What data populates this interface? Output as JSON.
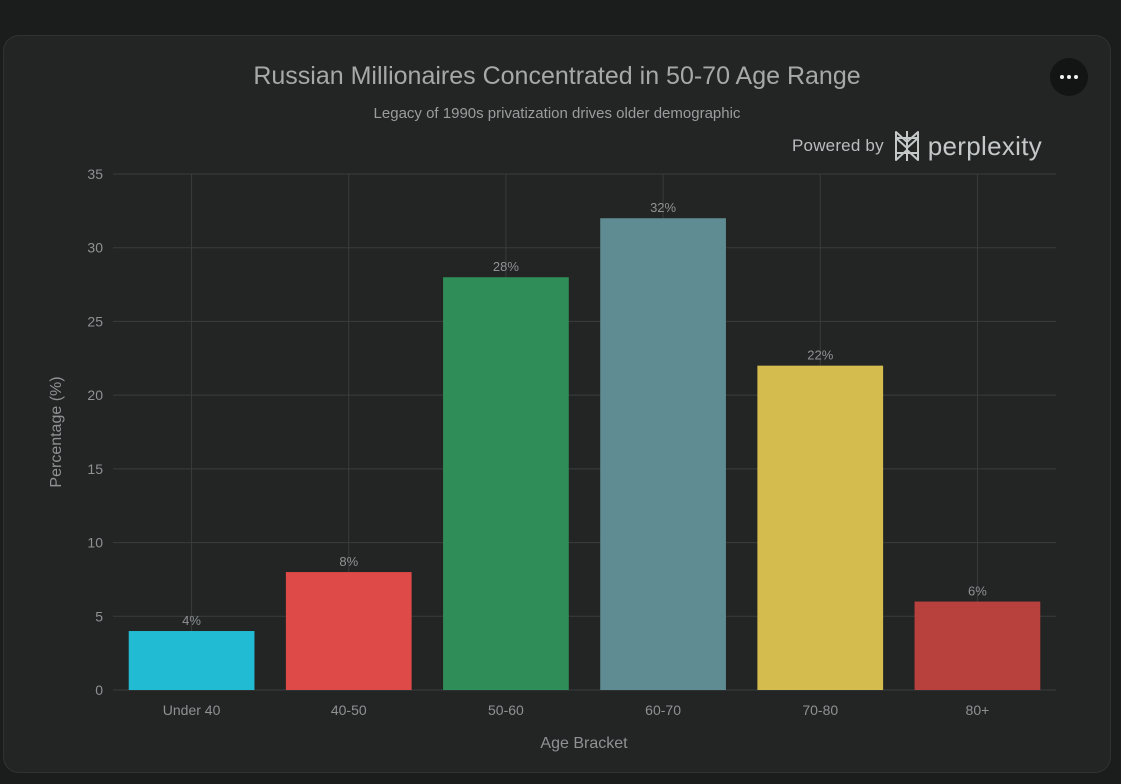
{
  "chart_data": {
    "type": "bar",
    "title": "Russian Millionaires Concentrated in 50-70 Age Range",
    "subtitle": "Legacy of 1990s privatization drives older demographic",
    "xlabel": "Age Bracket",
    "ylabel": "Percentage (%)",
    "categories": [
      "Under 40",
      "40-50",
      "50-60",
      "60-70",
      "70-80",
      "80+"
    ],
    "values": [
      4,
      8,
      28,
      32,
      22,
      6
    ],
    "data_labels": [
      "4%",
      "8%",
      "28%",
      "32%",
      "22%",
      "6%"
    ],
    "colors": [
      "#21bcd3",
      "#de4a47",
      "#2f8d57",
      "#5f8b92",
      "#d4bc4e",
      "#b8403d"
    ],
    "ylim": [
      0,
      35
    ],
    "yticks": [
      0,
      5,
      10,
      15,
      20,
      25,
      30,
      35
    ],
    "grid": true,
    "legend": "none"
  },
  "brand": {
    "powered_label": "Powered by",
    "name": "perplexity",
    "icon": "perplexity-logo-icon"
  },
  "menu": {
    "icon": "more-horizontal-icon"
  },
  "colors": {
    "background": "#1b1c1c",
    "card": "#232525",
    "grid": "#3a3d3d",
    "text": "#8e9292"
  }
}
